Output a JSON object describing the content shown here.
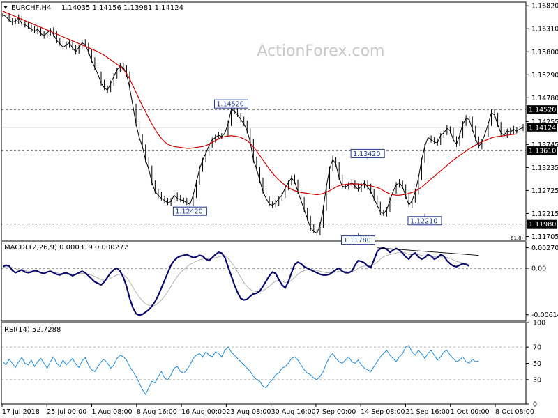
{
  "header": {
    "symbol": "EURCHF,H4",
    "ohlc": "1.14035 1.14156 1.13981 1.14124",
    "watermark": "ActionForex.com"
  },
  "chart_data": [
    {
      "type": "candlestick",
      "panel": "price",
      "title": "EURCHF,H4 1.14035 1.14156 1.13981 1.14124",
      "y_ticks": [
        "1.16820",
        "1.16310",
        "1.15800",
        "1.15290",
        "1.14780",
        "1.14255",
        "1.13745",
        "1.13235",
        "1.12725",
        "1.12215",
        "1.11705"
      ],
      "ylim": [
        1.1162,
        1.169
      ],
      "last_price": {
        "label": "1.14124",
        "value": 1.14124
      },
      "horizontal_levels": [
        {
          "label": "1.14520",
          "value": 1.1452
        },
        {
          "label": "1.13610",
          "value": 1.1361
        },
        {
          "label": "1.11980",
          "value": 1.1198
        }
      ],
      "annotations": [
        {
          "label": "1.14520",
          "value": 1.1452,
          "x_index": 72
        },
        {
          "label": "1.13420",
          "value": 1.1342,
          "x_index": 115
        },
        {
          "label": "1.12420",
          "value": 1.1242,
          "x_index": 59
        },
        {
          "label": "1.12210",
          "value": 1.1221,
          "x_index": 133
        },
        {
          "label": "1.11780",
          "value": 1.1178,
          "x_index": 112
        }
      ],
      "extra_label": "61.8",
      "colors": {
        "price": "#000000",
        "moving_average": "#cc0000",
        "levels": "#000000",
        "tag": "#1f3a8a"
      },
      "price_series": [
        1.1662,
        1.1658,
        1.165,
        1.1645,
        1.1648,
        1.1655,
        1.1642,
        1.164,
        1.1635,
        1.163,
        1.1625,
        1.163,
        1.162,
        1.1615,
        1.1622,
        1.1628,
        1.1618,
        1.1605,
        1.1598,
        1.159,
        1.1595,
        1.16,
        1.1588,
        1.158,
        1.159,
        1.16,
        1.1595,
        1.158,
        1.156,
        1.1545,
        1.153,
        1.151,
        1.15,
        1.1495,
        1.151,
        1.1525,
        1.154,
        1.1548,
        1.1545,
        1.153,
        1.15,
        1.146,
        1.142,
        1.139,
        1.137,
        1.134,
        1.132,
        1.129,
        1.127,
        1.1262,
        1.1255,
        1.125,
        1.1245,
        1.1248,
        1.1262,
        1.1255,
        1.1252,
        1.125,
        1.1245,
        1.1242,
        1.1262,
        1.129,
        1.132,
        1.134,
        1.1355,
        1.1372,
        1.1385,
        1.139,
        1.1395,
        1.1392,
        1.14,
        1.142,
        1.1452,
        1.1448,
        1.144,
        1.143,
        1.142,
        1.1405,
        1.138,
        1.134,
        1.132,
        1.1295,
        1.127,
        1.1255,
        1.1242,
        1.124,
        1.1245,
        1.1255,
        1.1262,
        1.1278,
        1.129,
        1.13,
        1.1292,
        1.127,
        1.125,
        1.123,
        1.121,
        1.119,
        1.1182,
        1.1178,
        1.1196,
        1.1232,
        1.1282,
        1.132,
        1.1342,
        1.133,
        1.13,
        1.1282,
        1.128,
        1.1285,
        1.129,
        1.1282,
        1.1275,
        1.1282,
        1.129,
        1.128,
        1.127,
        1.1255,
        1.124,
        1.1225,
        1.1221,
        1.123,
        1.125,
        1.127,
        1.1285,
        1.129,
        1.128,
        1.126,
        1.124,
        1.125,
        1.127,
        1.13,
        1.134,
        1.137,
        1.139,
        1.1385,
        1.138,
        1.1378,
        1.1395,
        1.14,
        1.141,
        1.1405,
        1.1385,
        1.1375,
        1.1395,
        1.142,
        1.1432,
        1.143,
        1.1408,
        1.1388,
        1.137,
        1.138,
        1.1398,
        1.142,
        1.1445,
        1.144,
        1.1418,
        1.14,
        1.1395,
        1.1405,
        1.1402,
        1.1408,
        1.1404,
        1.1409,
        1.1412
      ],
      "ma_series": [
        1.167,
        1.1667,
        1.1664,
        1.1661,
        1.1658,
        1.1655,
        1.1652,
        1.1649,
        1.1646,
        1.1643,
        1.164,
        1.1637,
        1.1634,
        1.1631,
        1.1628,
        1.1625,
        1.1622,
        1.1619,
        1.1616,
        1.1613,
        1.161,
        1.1607,
        1.1604,
        1.1601,
        1.1598,
        1.1595,
        1.1592,
        1.1589,
        1.1586,
        1.1583,
        1.158,
        1.1576,
        1.1572,
        1.1567,
        1.1562,
        1.1557,
        1.1552,
        1.1547,
        1.1541,
        1.1532,
        1.152,
        1.1505,
        1.149,
        1.1475,
        1.146,
        1.1447,
        1.1433,
        1.142,
        1.1408,
        1.1397,
        1.1388,
        1.138,
        1.1375,
        1.1372,
        1.137,
        1.1369,
        1.1368,
        1.1367,
        1.1366,
        1.1366,
        1.1367,
        1.1368,
        1.1369,
        1.137,
        1.1372,
        1.1375,
        1.1379,
        1.1383,
        1.1387,
        1.139,
        1.1392,
        1.1393,
        1.1394,
        1.1393,
        1.1392,
        1.139,
        1.1387,
        1.1383,
        1.1377,
        1.1369,
        1.136,
        1.135,
        1.134,
        1.133,
        1.132,
        1.1311,
        1.1303,
        1.1296,
        1.129,
        1.1284,
        1.1279,
        1.1275,
        1.1272,
        1.127,
        1.1268,
        1.1267,
        1.1266,
        1.1265,
        1.1264,
        1.1263,
        1.1264,
        1.1266,
        1.1269,
        1.1272,
        1.1276,
        1.128,
        1.1283,
        1.1285,
        1.1286,
        1.1287,
        1.1287,
        1.1287,
        1.1287,
        1.1286,
        1.1285,
        1.1284,
        1.1283,
        1.1281,
        1.1279,
        1.1276,
        1.1272,
        1.1268,
        1.1265,
        1.1263,
        1.1262,
        1.1262,
        1.1263,
        1.1264,
        1.1266,
        1.1268,
        1.1271,
        1.1275,
        1.128,
        1.1286,
        1.1292,
        1.1298,
        1.1304,
        1.131,
        1.1316,
        1.1322,
        1.1328,
        1.1334,
        1.134,
        1.1345,
        1.135,
        1.1355,
        1.136,
        1.1365,
        1.1369,
        1.1373,
        1.1377,
        1.138,
        1.1383,
        1.1386,
        1.1389,
        1.1391,
        1.1392,
        1.1393,
        1.1394,
        1.1395,
        1.1396,
        1.1397,
        1.1398
      ]
    },
    {
      "type": "line",
      "panel": "macd",
      "title": "MACD(12,26,9) 0.000319 0.000272",
      "y_ticks": [
        "0.002708",
        "0.00",
        "-0.006148"
      ],
      "ylim": [
        -0.007,
        0.0035
      ],
      "zero_line": true,
      "colors": {
        "macd": "#0b0b6b",
        "signal": "#b0b0b0",
        "trendline": "#000000"
      },
      "macd_series": [
        0.0002,
        0.0004,
        0.0003,
        -0.0003,
        -0.0006,
        -0.0004,
        -0.0002,
        -0.0005,
        -0.0006,
        -0.0005,
        -0.0003,
        -0.0004,
        -0.0006,
        -0.0007,
        -0.0005,
        -0.0004,
        -0.0006,
        -0.0008,
        -0.0009,
        -0.0007,
        -0.0006,
        -0.0008,
        -0.001,
        -0.0008,
        -0.0006,
        -0.0004,
        -0.0006,
        -0.001,
        -0.0014,
        -0.0018,
        -0.002,
        -0.0022,
        -0.0018,
        -0.0012,
        -0.0006,
        -0.0002,
        0.0,
        -0.0004,
        -0.0012,
        -0.0024,
        -0.004,
        -0.0052,
        -0.006,
        -0.0062,
        -0.0061,
        -0.0058,
        -0.0055,
        -0.005,
        -0.0044,
        -0.0036,
        -0.0026,
        -0.0016,
        -0.0006,
        0.0004,
        0.001,
        0.0014,
        0.0016,
        0.0017,
        0.0018,
        0.0016,
        0.0014,
        0.0015,
        0.0017,
        0.0016,
        0.0012,
        0.001,
        0.0014,
        0.0018,
        0.0021,
        0.002,
        0.0014,
        0.0002,
        -0.001,
        -0.0022,
        -0.0032,
        -0.004,
        -0.0042,
        -0.0041,
        -0.0037,
        -0.0034,
        -0.0033,
        -0.003,
        -0.0024,
        -0.0017,
        -0.001,
        -0.0005,
        -0.0007,
        -0.0015,
        -0.0022,
        -0.0026,
        -0.0018,
        -0.0006,
        0.0005,
        0.0008,
        0.0006,
        0.0002,
        0.0,
        -0.0002,
        -0.0004,
        -0.0006,
        -0.0008,
        -0.0009,
        -0.0009,
        -0.0008,
        -0.0005,
        -0.0002,
        0.0,
        -0.0004,
        -0.0006,
        -0.0006,
        -0.0004,
        0.0004,
        0.001,
        0.0009,
        0.0007,
        0.0003,
        0.0001,
        0.0011,
        0.0022,
        0.0026,
        0.0027,
        0.0025,
        0.0021,
        0.0024,
        0.0026,
        0.0024,
        0.002,
        0.0015,
        0.0012,
        0.0018,
        0.002,
        0.0015,
        0.0012,
        0.0014,
        0.0018,
        0.0016,
        0.0012,
        0.0014,
        0.0018,
        0.0016,
        0.001,
        0.0006,
        0.0003,
        0.0002,
        0.0004,
        0.0006,
        0.0005,
        0.0003
      ],
      "signal_series": [
        0.0001,
        0.0002,
        0.0002,
        0.0001,
        -0.0001,
        -0.0002,
        -0.0002,
        -0.0003,
        -0.0004,
        -0.0004,
        -0.0004,
        -0.0004,
        -0.0005,
        -0.0005,
        -0.0005,
        -0.0005,
        -0.0005,
        -0.0006,
        -0.0007,
        -0.0007,
        -0.0007,
        -0.0007,
        -0.0008,
        -0.0008,
        -0.0007,
        -0.0007,
        -0.0007,
        -0.0008,
        -0.0009,
        -0.0011,
        -0.0013,
        -0.0015,
        -0.0016,
        -0.0015,
        -0.0013,
        -0.0011,
        -0.0009,
        -0.0008,
        -0.0009,
        -0.0012,
        -0.0018,
        -0.0025,
        -0.0032,
        -0.0038,
        -0.0043,
        -0.0047,
        -0.0049,
        -0.005,
        -0.0049,
        -0.0046,
        -0.0042,
        -0.0037,
        -0.0031,
        -0.0024,
        -0.0017,
        -0.0011,
        -0.0006,
        -0.0002,
        0.0002,
        0.0005,
        0.0007,
        0.0009,
        0.0011,
        0.0012,
        0.0013,
        0.0012,
        0.0013,
        0.0014,
        0.0015,
        0.0016,
        0.0016,
        0.0013,
        0.0008,
        0.0002,
        -0.0005,
        -0.0012,
        -0.0019,
        -0.0024,
        -0.0028,
        -0.003,
        -0.0031,
        -0.0031,
        -0.003,
        -0.0027,
        -0.0024,
        -0.002,
        -0.0017,
        -0.0016,
        -0.0017,
        -0.0019,
        -0.0019,
        -0.0016,
        -0.0012,
        -0.0008,
        -0.0005,
        -0.0003,
        -0.0002,
        -0.0002,
        -0.0002,
        -0.0003,
        -0.0004,
        -0.0005,
        -0.0006,
        -0.0006,
        -0.0006,
        -0.0005,
        -0.0004,
        -0.0004,
        -0.0004,
        -0.0005,
        -0.0005,
        -0.0003,
        0.0,
        0.0002,
        0.0003,
        0.0003,
        0.0003,
        0.0005,
        0.0008,
        0.0012,
        0.0015,
        0.0017,
        0.0018,
        0.0019,
        0.002,
        0.0021,
        0.0021,
        0.002,
        0.0018,
        0.0018,
        0.0018,
        0.0018,
        0.0017,
        0.0016,
        0.0016,
        0.0016,
        0.0015,
        0.0015,
        0.0015,
        0.0015,
        0.0014,
        0.0013,
        0.0011,
        0.0009,
        0.0008,
        0.0007,
        0.0006,
        0.0005
      ],
      "trendline": {
        "from_index": 118,
        "to_index": 150,
        "from_value": 0.0027,
        "to_value": 0.0017
      }
    },
    {
      "type": "line",
      "panel": "rsi",
      "title": "RSI(14) 52.7288",
      "y_ticks": [
        "100",
        "70",
        "50",
        "30",
        "0"
      ],
      "ylim": [
        0,
        100
      ],
      "reference_lines": [
        70,
        30
      ],
      "colors": {
        "rsi": "#1e8ad8"
      },
      "rsi_series": [
        52,
        48,
        55,
        50,
        45,
        52,
        57,
        50,
        48,
        54,
        46,
        52,
        56,
        50,
        44,
        52,
        58,
        50,
        46,
        54,
        48,
        52,
        56,
        49,
        45,
        53,
        57,
        48,
        42,
        40,
        46,
        52,
        55,
        50,
        44,
        48,
        56,
        60,
        58,
        54,
        46,
        40,
        34,
        26,
        18,
        12,
        20,
        28,
        26,
        34,
        40,
        32,
        30,
        36,
        44,
        46,
        40,
        38,
        42,
        48,
        56,
        60,
        62,
        58,
        64,
        60,
        58,
        64,
        62,
        58,
        66,
        70,
        64,
        60,
        56,
        52,
        48,
        44,
        40,
        34,
        30,
        28,
        22,
        20,
        26,
        30,
        36,
        38,
        44,
        46,
        50,
        56,
        58,
        54,
        48,
        42,
        38,
        36,
        32,
        30,
        34,
        40,
        50,
        58,
        62,
        56,
        52,
        50,
        54,
        58,
        52,
        50,
        54,
        48,
        44,
        42,
        40,
        46,
        52,
        58,
        62,
        66,
        60,
        56,
        52,
        58,
        62,
        70,
        72,
        64,
        60,
        66,
        62,
        56,
        62,
        66,
        60,
        54,
        58,
        64,
        66,
        60,
        56,
        52,
        54,
        58,
        52,
        50,
        55,
        52,
        53
      ],
      "x_labels": [
        "17 Jul 2018",
        "25 Jul 00:00",
        "1 Aug 08:00",
        "8 Aug 16:00",
        "16 Aug 00:00",
        "23 Aug 08:00",
        "30 Aug 16:00",
        "7 Sep 00:00",
        "14 Sep 08:00",
        "21 Sep 16:00",
        "1 Oct 00:00",
        "8 Oct 08:00"
      ]
    }
  ]
}
